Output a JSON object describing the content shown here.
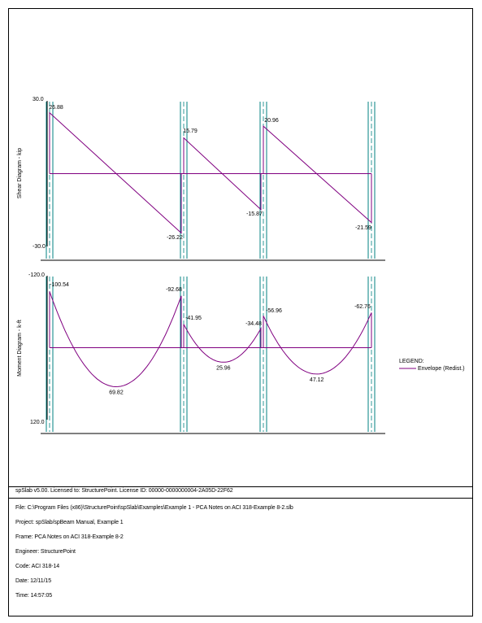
{
  "colors": {
    "curve": "#800080",
    "support": "#008080",
    "axis": "#000000"
  },
  "footer": {
    "license": "spSlab v5.00. Licensed to: StructurePoint. License ID: 00000-0000000004-2A05D-22F62",
    "file": "File: C:\\Program Files (x86)\\StructurePoint\\spSlab\\Examples\\Example 1 - PCA Notes on ACI 318-Example 8-2.slb",
    "project": "Project: spSlab/spBeam Manual, Example 1",
    "frame": "Frame: PCA Notes on ACI 318-Example 8-2",
    "engineer": "Engineer: StructurePoint",
    "code": "Code: ACI 318-14",
    "date": "Date: 12/11/15",
    "time": "Time: 14:57:05"
  },
  "chart_data": [
    {
      "type": "line",
      "ylabel": "Shear Diagram - kip",
      "ylim": [
        -30.0,
        30.0
      ],
      "y_tick_labels": [
        "30.0",
        "-30.0"
      ],
      "supports_count": 4,
      "series": [
        {
          "name": "Envelope (Redist.)",
          "spans": [
            {
              "x": [
                0,
                1
              ],
              "y": [
                26.88,
                -26.22
              ]
            },
            {
              "x": [
                0,
                1
              ],
              "y": [
                15.79,
                -15.87
              ]
            },
            {
              "x": [
                0,
                1
              ],
              "y": [
                20.96,
                -21.59
              ]
            }
          ]
        }
      ],
      "data_labels": [
        "26.88",
        "-26.22",
        "15.79",
        "-15.87",
        "20.96",
        "-21.59"
      ]
    },
    {
      "type": "line",
      "ylabel": "Moment Diagram - k-ft",
      "ylim": [
        -120.0,
        120.0
      ],
      "y_tick_labels": [
        "-120.0",
        "120.0"
      ],
      "supports_count": 4,
      "legend": {
        "title": "LEGEND:",
        "entries": [
          "Envelope (Redist.)"
        ],
        "position": "right"
      },
      "series": [
        {
          "name": "Envelope (Redist.)",
          "spans": [
            {
              "end_moments": [
                -100.54,
                -92.68
              ],
              "max_positive": 69.82
            },
            {
              "end_moments": [
                -41.95,
                -34.48
              ],
              "max_positive": 25.96
            },
            {
              "end_moments": [
                -56.96,
                -62.76
              ],
              "max_positive": 47.12
            }
          ]
        }
      ],
      "data_labels": [
        "-100.54",
        "-92.68",
        "-41.95",
        "-34.48",
        "-56.96",
        "-62.76",
        "69.82",
        "25.96",
        "47.12"
      ]
    }
  ]
}
